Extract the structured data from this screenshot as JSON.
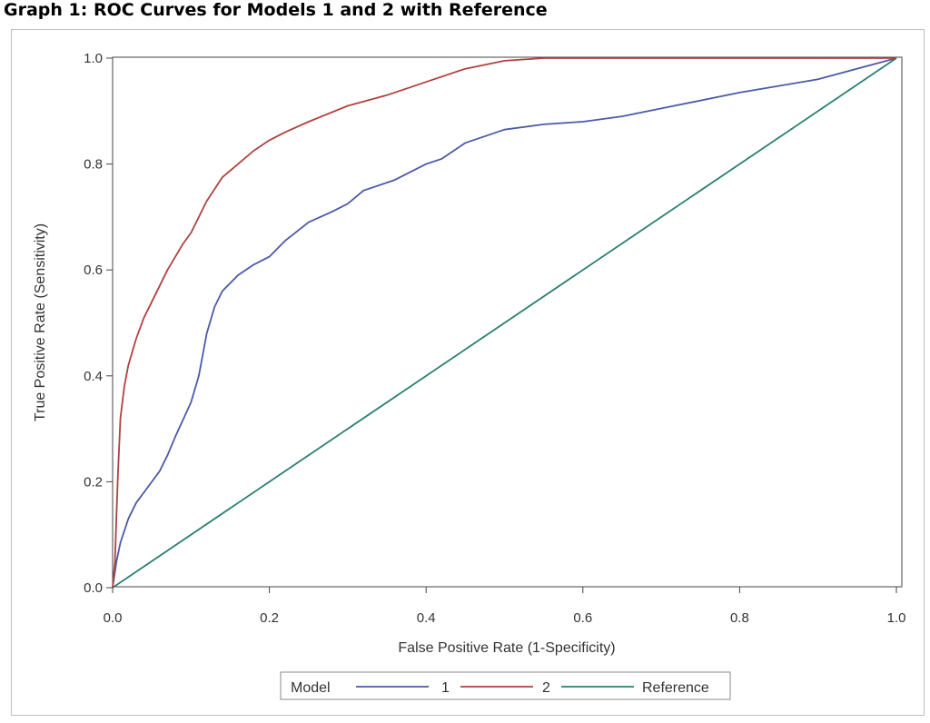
{
  "chart_data": {
    "type": "line",
    "title": "Graph 1: ROC Curves for Models 1 and 2 with Reference",
    "xlabel": "False Positive Rate (1-Specificity)",
    "ylabel": "True Positive Rate (Sensitivity)",
    "xlim": [
      0.0,
      1.0
    ],
    "ylim": [
      0.0,
      1.0
    ],
    "xticks": [
      "0.0",
      "0.2",
      "0.4",
      "0.6",
      "0.8",
      "1.0"
    ],
    "yticks": [
      "0.0",
      "0.2",
      "0.4",
      "0.6",
      "0.8",
      "1.0"
    ],
    "grid": false,
    "legend": {
      "title": "Model",
      "placement": "bottom"
    },
    "series": [
      {
        "name": "1",
        "color": "#4a5aa8",
        "points": [
          [
            0.0,
            0.0
          ],
          [
            0.005,
            0.05
          ],
          [
            0.01,
            0.085
          ],
          [
            0.02,
            0.13
          ],
          [
            0.03,
            0.16
          ],
          [
            0.05,
            0.2
          ],
          [
            0.06,
            0.22
          ],
          [
            0.07,
            0.25
          ],
          [
            0.08,
            0.285
          ],
          [
            0.1,
            0.35
          ],
          [
            0.11,
            0.4
          ],
          [
            0.12,
            0.48
          ],
          [
            0.13,
            0.53
          ],
          [
            0.14,
            0.56
          ],
          [
            0.16,
            0.59
          ],
          [
            0.18,
            0.61
          ],
          [
            0.2,
            0.625
          ],
          [
            0.22,
            0.655
          ],
          [
            0.25,
            0.69
          ],
          [
            0.28,
            0.71
          ],
          [
            0.3,
            0.725
          ],
          [
            0.32,
            0.75
          ],
          [
            0.36,
            0.77
          ],
          [
            0.4,
            0.8
          ],
          [
            0.42,
            0.81
          ],
          [
            0.45,
            0.84
          ],
          [
            0.5,
            0.865
          ],
          [
            0.55,
            0.875
          ],
          [
            0.6,
            0.88
          ],
          [
            0.65,
            0.89
          ],
          [
            0.7,
            0.905
          ],
          [
            0.8,
            0.935
          ],
          [
            0.9,
            0.96
          ],
          [
            1.0,
            1.0
          ]
        ]
      },
      {
        "name": "2",
        "color": "#b0413e",
        "points": [
          [
            0.0,
            0.0
          ],
          [
            0.003,
            0.05
          ],
          [
            0.005,
            0.14
          ],
          [
            0.007,
            0.22
          ],
          [
            0.01,
            0.32
          ],
          [
            0.015,
            0.38
          ],
          [
            0.02,
            0.42
          ],
          [
            0.03,
            0.47
          ],
          [
            0.04,
            0.51
          ],
          [
            0.05,
            0.54
          ],
          [
            0.07,
            0.6
          ],
          [
            0.09,
            0.65
          ],
          [
            0.1,
            0.67
          ],
          [
            0.12,
            0.73
          ],
          [
            0.14,
            0.775
          ],
          [
            0.16,
            0.8
          ],
          [
            0.18,
            0.825
          ],
          [
            0.2,
            0.845
          ],
          [
            0.22,
            0.86
          ],
          [
            0.25,
            0.88
          ],
          [
            0.3,
            0.91
          ],
          [
            0.35,
            0.93
          ],
          [
            0.4,
            0.955
          ],
          [
            0.45,
            0.98
          ],
          [
            0.5,
            0.995
          ],
          [
            0.55,
            1.0
          ],
          [
            1.0,
            1.0
          ]
        ]
      },
      {
        "name": "Reference",
        "color": "#2a8070",
        "points": [
          [
            0.0,
            0.0
          ],
          [
            1.0,
            1.0
          ]
        ]
      }
    ]
  }
}
